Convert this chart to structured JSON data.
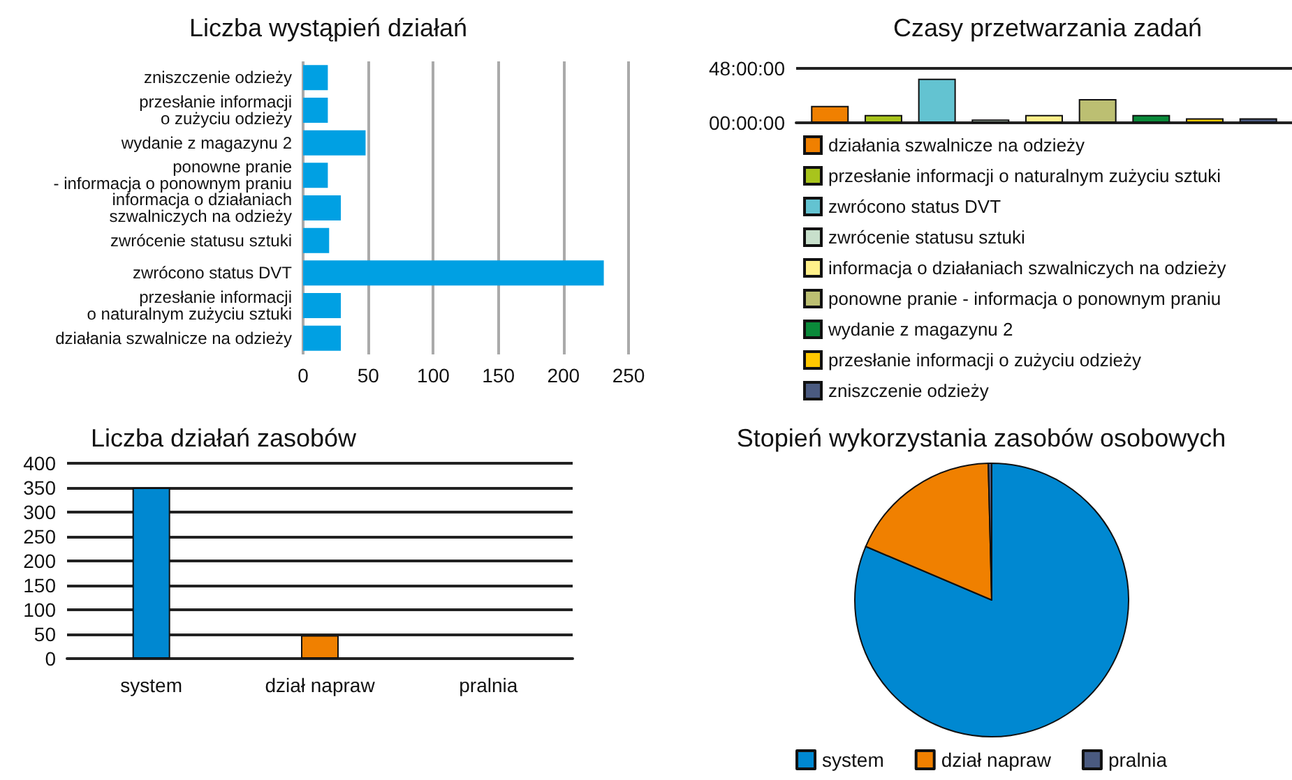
{
  "chart_data": [
    {
      "type": "bar",
      "title": "Liczba wystąpień działań",
      "orientation": "horizontal",
      "categories": [
        "zniszczenie odzieży",
        "przesłanie informacji\no zużyciu odzieży",
        "wydanie z magazynu 2",
        "ponowne pranie\n- informacja o ponownym praniu",
        "informacja o działaniach\nszwalniczych na odzieży",
        "zwrócenie statusu sztuki",
        "zwrócono status DVT",
        "przesłanie informacji\no naturalnym zużyciu sztuki",
        "działania szwalnicze na odzieży"
      ],
      "values": [
        19,
        19,
        48,
        19,
        29,
        20,
        231,
        29,
        29
      ],
      "color": "#00a0e3",
      "xlim": [
        0,
        250
      ],
      "xticks": [
        0,
        50,
        100,
        150,
        200,
        250
      ],
      "grid": "x"
    },
    {
      "type": "bar",
      "title": "Czasy przetwarzania zadań",
      "categories": [
        null
      ],
      "series": [
        {
          "name": "działania szwalnicze na odzieży",
          "color": "#f08000",
          "values": [
            15
          ]
        },
        {
          "name": "przesłanie informacji o naturalnym zużyciu sztuki",
          "color": "#a8c41c",
          "values": [
            7
          ]
        },
        {
          "name": "zwrócono status DVT",
          "color": "#63c3d1",
          "values": [
            39
          ]
        },
        {
          "name": "zwrócenie statusu sztuki",
          "color": "#c8e0cc",
          "values": [
            3
          ]
        },
        {
          "name": "informacja o działaniach szwalniczych na odzieży",
          "color": "#fff08a",
          "values": [
            7
          ]
        },
        {
          "name": "ponowne pranie - informacja o ponownym praniu",
          "color": "#bcbf72",
          "values": [
            21
          ]
        },
        {
          "name": "wydanie z magazynu 2",
          "color": "#0a8a3a",
          "values": [
            7
          ]
        },
        {
          "name": "przesłanie informacji o zużyciu odzieży",
          "color": "#ffc800",
          "values": [
            4
          ]
        },
        {
          "name": "zniszczenie odzieży",
          "color": "#4a5a80",
          "values": [
            4
          ]
        }
      ],
      "ylim": [
        0,
        48
      ],
      "yticks": [
        {
          "value": 0,
          "label": "00:00:00"
        },
        {
          "value": 48,
          "label": "48:00:00"
        }
      ],
      "grid": "y",
      "tick_labels": "y",
      "legend": "bottom"
    },
    {
      "type": "bar",
      "title": "Liczba działań zasobów",
      "categories": [
        "system",
        "dział napraw",
        "pralnia"
      ],
      "values": [
        350,
        48,
        0
      ],
      "colors": [
        "#0088d1",
        "#f08000",
        "#4a5a80"
      ],
      "ylim": [
        0,
        400
      ],
      "yticks": [
        0,
        50,
        100,
        150,
        200,
        250,
        300,
        350,
        400
      ],
      "grid": "y"
    },
    {
      "type": "pie",
      "title": "Stopień wykorzystania zasobów osobowych",
      "categories": [
        "system",
        "dział napraw",
        "pralnia"
      ],
      "values": [
        81.4,
        18.2,
        0.4
      ],
      "colors": [
        "#0088d1",
        "#f08000",
        "#4a5a80"
      ],
      "legend": "bottom"
    }
  ]
}
